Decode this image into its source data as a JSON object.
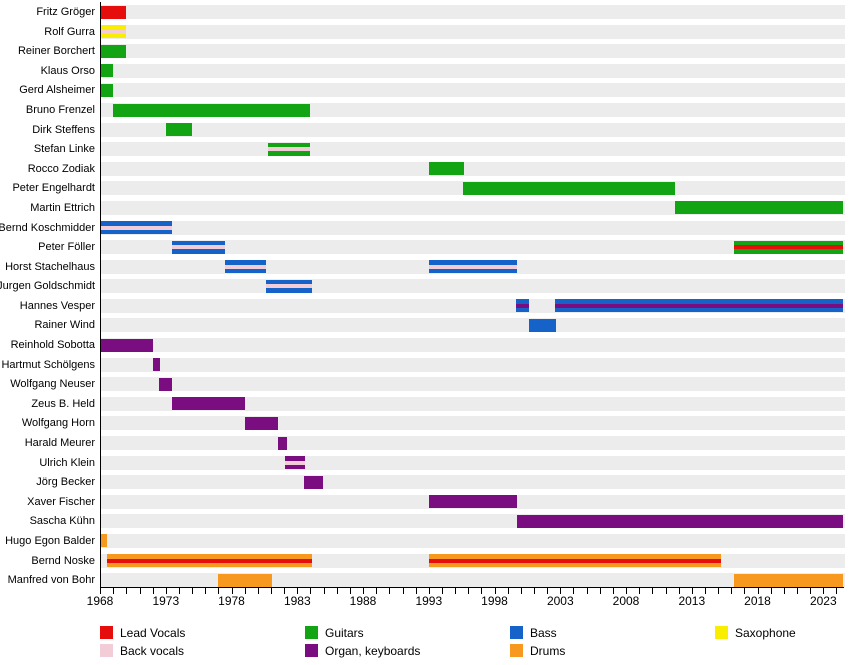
{
  "colors": {
    "lead_vocals": "#e60d0d",
    "back_vocals": "#f2cdd7",
    "guitars": "#12a412",
    "organ_keyboards": "#7a0d80",
    "bass": "#1563c9",
    "saxophone": "#f9ee00",
    "drums": "#f7981f",
    "row_band": "#ececec",
    "axis": "#000000"
  },
  "chart_data": {
    "type": "bar",
    "subtype": "gantt-timeline",
    "title": "",
    "xlabel": "",
    "ylabel": "",
    "grid": false,
    "legend_position": "bottom",
    "x_axis": {
      "min": 1968,
      "max": 2024.5,
      "minor_tick_interval": 1,
      "major_ticks": [
        1968,
        1973,
        1978,
        1983,
        1988,
        1993,
        1998,
        2003,
        2008,
        2013,
        2018,
        2023
      ]
    },
    "legend": [
      {
        "label": "Lead Vocals",
        "role": "lead_vocals",
        "col": 0,
        "row": 0
      },
      {
        "label": "Back vocals",
        "role": "back_vocals",
        "col": 0,
        "row": 1
      },
      {
        "label": "Guitars",
        "role": "guitars",
        "col": 1,
        "row": 0
      },
      {
        "label": "Organ, keyboards",
        "role": "organ_keyboards",
        "col": 1,
        "row": 1
      },
      {
        "label": "Bass",
        "role": "bass",
        "col": 2,
        "row": 0
      },
      {
        "label": "Drums",
        "role": "drums",
        "col": 2,
        "row": 1
      },
      {
        "label": "Saxophone",
        "role": "saxophone",
        "col": 3,
        "row": 0
      }
    ],
    "members": [
      {
        "name": "Fritz Gröger",
        "segments": [
          {
            "start": 1968,
            "end": 1970,
            "role": "lead_vocals"
          }
        ]
      },
      {
        "name": "Rolf Gurra",
        "segments": [
          {
            "start": 1968,
            "end": 1970,
            "role": "saxophone",
            "stripe_role": "back_vocals"
          }
        ]
      },
      {
        "name": "Reiner Borchert",
        "segments": [
          {
            "start": 1968,
            "end": 1970,
            "role": "guitars"
          }
        ]
      },
      {
        "name": "Klaus Orso",
        "segments": [
          {
            "start": 1968,
            "end": 1969,
            "role": "guitars"
          }
        ]
      },
      {
        "name": "Gerd Alsheimer",
        "segments": [
          {
            "start": 1968,
            "end": 1969,
            "role": "guitars"
          }
        ]
      },
      {
        "name": "Bruno Frenzel",
        "segments": [
          {
            "start": 1969,
            "end": 1984,
            "role": "guitars"
          }
        ]
      },
      {
        "name": "Dirk Steffens",
        "segments": [
          {
            "start": 1973,
            "end": 1975,
            "role": "guitars"
          }
        ]
      },
      {
        "name": "Stefan Linke",
        "segments": [
          {
            "start": 1980.8,
            "end": 1984,
            "role": "guitars",
            "stripe_role": "back_vocals"
          }
        ]
      },
      {
        "name": "Rocco Zodiak",
        "segments": [
          {
            "start": 1993,
            "end": 1995.7,
            "role": "guitars"
          }
        ]
      },
      {
        "name": "Peter Engelhardt",
        "segments": [
          {
            "start": 1995.6,
            "end": 2011.7,
            "role": "guitars"
          }
        ]
      },
      {
        "name": "Martin Ettrich",
        "segments": [
          {
            "start": 2011.7,
            "end": 2024.5,
            "role": "guitars"
          }
        ]
      },
      {
        "name": "Bernd Koschmidder",
        "segments": [
          {
            "start": 1968,
            "end": 1973.5,
            "role": "bass",
            "stripe_role": "back_vocals"
          }
        ]
      },
      {
        "name": "Peter Föller",
        "segments": [
          {
            "start": 1973.5,
            "end": 1977.5,
            "role": "bass",
            "stripe_role": "back_vocals"
          },
          {
            "start": 2016.2,
            "end": 2024.5,
            "role": "guitars",
            "stripe_role": "lead_vocals"
          }
        ]
      },
      {
        "name": "Horst Stachelhaus",
        "segments": [
          {
            "start": 1977.5,
            "end": 1980.6,
            "role": "bass",
            "stripe_role": "back_vocals"
          },
          {
            "start": 1993,
            "end": 1999.7,
            "role": "bass",
            "stripe_role": "back_vocals"
          }
        ]
      },
      {
        "name": "Jurgen Goldschmidt",
        "segments": [
          {
            "start": 1980.6,
            "end": 1984.1,
            "role": "bass",
            "stripe_role": "back_vocals"
          }
        ]
      },
      {
        "name": "Hannes Vesper",
        "segments": [
          {
            "start": 1999.6,
            "end": 2000.6,
            "role": "bass",
            "stripe_role": "organ_keyboards"
          },
          {
            "start": 2002.6,
            "end": 2024.5,
            "role": "bass",
            "stripe_role": "organ_keyboards"
          }
        ]
      },
      {
        "name": "Rainer Wind",
        "segments": [
          {
            "start": 2000.6,
            "end": 2002.7,
            "role": "bass"
          }
        ]
      },
      {
        "name": "Reinhold Sobotta",
        "segments": [
          {
            "start": 1968,
            "end": 1972,
            "role": "organ_keyboards"
          }
        ]
      },
      {
        "name": "Hartmut Schölgens",
        "segments": [
          {
            "start": 1972,
            "end": 1972.6,
            "role": "organ_keyboards"
          }
        ]
      },
      {
        "name": "Wolfgang Neuser",
        "segments": [
          {
            "start": 1972.5,
            "end": 1973.5,
            "role": "organ_keyboards"
          }
        ]
      },
      {
        "name": "Zeus B. Held",
        "segments": [
          {
            "start": 1973.5,
            "end": 1979,
            "role": "organ_keyboards"
          }
        ]
      },
      {
        "name": "Wolfgang Horn",
        "segments": [
          {
            "start": 1979,
            "end": 1981.5,
            "role": "organ_keyboards"
          }
        ]
      },
      {
        "name": "Harald Meurer",
        "segments": [
          {
            "start": 1981.5,
            "end": 1982.2,
            "role": "organ_keyboards"
          }
        ]
      },
      {
        "name": "Ulrich Klein",
        "segments": [
          {
            "start": 1982.1,
            "end": 1983.6,
            "role": "organ_keyboards",
            "stripe_role": "back_vocals"
          }
        ]
      },
      {
        "name": "Jörg Becker",
        "segments": [
          {
            "start": 1983.5,
            "end": 1985,
            "role": "organ_keyboards"
          }
        ]
      },
      {
        "name": "Xaver Fischer",
        "segments": [
          {
            "start": 1993,
            "end": 1999.7,
            "role": "organ_keyboards"
          }
        ]
      },
      {
        "name": "Sascha Kühn",
        "segments": [
          {
            "start": 1999.7,
            "end": 2024.5,
            "role": "organ_keyboards"
          }
        ]
      },
      {
        "name": "Hugo Egon Balder",
        "segments": [
          {
            "start": 1968,
            "end": 1968.5,
            "role": "drums"
          }
        ]
      },
      {
        "name": "Bernd Noske",
        "segments": [
          {
            "start": 1968.5,
            "end": 1984.1,
            "role": "drums",
            "stripe_role": "lead_vocals"
          },
          {
            "start": 1993,
            "end": 2015.2,
            "role": "drums",
            "stripe_role": "lead_vocals"
          }
        ]
      },
      {
        "name": "Manfred von Bohr",
        "segments": [
          {
            "start": 1977,
            "end": 1981.1,
            "role": "drums"
          },
          {
            "start": 2016.2,
            "end": 2024.5,
            "role": "drums"
          }
        ]
      }
    ]
  }
}
